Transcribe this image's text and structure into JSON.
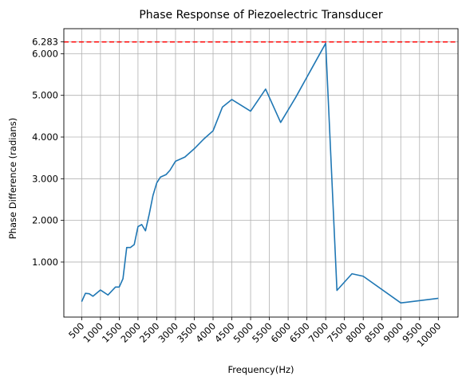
{
  "chart_data": {
    "type": "line",
    "title": "Phase Response of Piezoelectric Transducer",
    "xlabel": "Frequency(Hz)",
    "ylabel": "Phase Difference (radians)",
    "xlim": [
      25,
      10525
    ],
    "ylim": [
      -0.32,
      6.6
    ],
    "grid": true,
    "x_ticks": [
      500,
      1000,
      1500,
      2000,
      2500,
      3000,
      3500,
      4000,
      4500,
      5000,
      5500,
      6000,
      6500,
      7000,
      7500,
      8000,
      8500,
      9000,
      9500,
      10000
    ],
    "x_tick_labels": [
      "500",
      "1000",
      "1500",
      "2000",
      "2500",
      "3000",
      "3500",
      "4000",
      "4500",
      "5000",
      "5500",
      "6000",
      "6500",
      "7000",
      "7500",
      "8000",
      "8500",
      "9000",
      "9500",
      "10000"
    ],
    "y_ticks": [
      1,
      2,
      3,
      4,
      5,
      6,
      6.283
    ],
    "y_tick_labels": [
      "1.000",
      "2.000",
      "3.000",
      "4.000",
      "5.000",
      "6.000",
      "6.283"
    ],
    "reference_line": {
      "y": 6.283,
      "style": "dashed",
      "color": "#ff0000"
    },
    "series": [
      {
        "color": "#1f77b4",
        "x": [
          500,
          600,
          700,
          800,
          1000,
          1200,
          1400,
          1500,
          1600,
          1700,
          1800,
          1900,
          2000,
          2100,
          2200,
          2300,
          2400,
          2500,
          2600,
          2750,
          2850,
          3000,
          3250,
          3500,
          3750,
          4000,
          4250,
          4500,
          5000,
          5400,
          5800,
          6200,
          6600,
          7000,
          7300,
          7700,
          8000,
          9000,
          10000
        ],
        "y": [
          0.05,
          0.25,
          0.24,
          0.18,
          0.33,
          0.21,
          0.4,
          0.4,
          0.6,
          1.35,
          1.35,
          1.42,
          1.85,
          1.9,
          1.75,
          2.15,
          2.6,
          2.9,
          3.04,
          3.1,
          3.2,
          3.42,
          3.52,
          3.72,
          3.95,
          4.15,
          4.72,
          4.9,
          4.62,
          5.15,
          4.35,
          4.95,
          5.6,
          6.25,
          0.32,
          0.72,
          0.66,
          0.02,
          0.13
        ]
      }
    ]
  }
}
